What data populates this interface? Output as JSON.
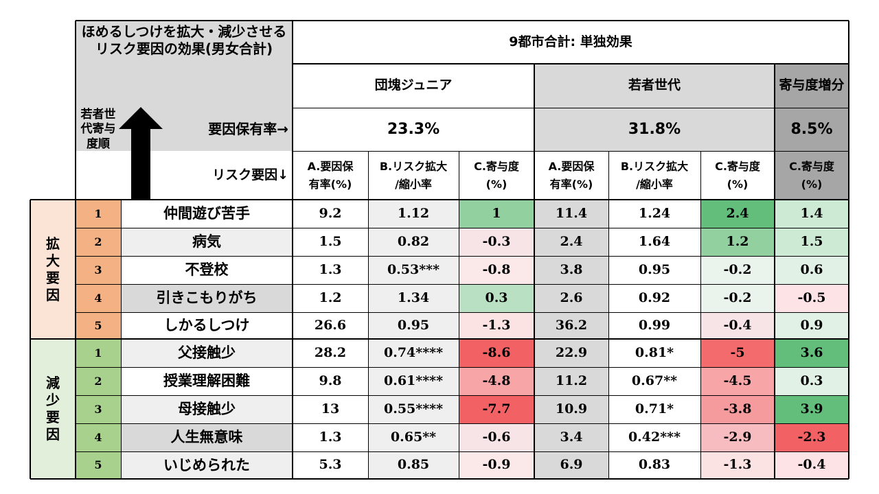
{
  "title": "ほめるしつけを拡大・減少させるリスク要因の効果(男女合計)",
  "city_header": "9都市合計: 単独効果",
  "groups": {
    "dankai": "団塊ジュニア",
    "wakamono": "若者世代",
    "delta": "寄与度増分"
  },
  "prevalence_label": "要因保有率→",
  "prevalence": {
    "dankai": "23.3%",
    "wakamono": "31.8%",
    "delta": "8.5%"
  },
  "rank_label": "若者世代寄与度順",
  "risk_label": "リスク要因↓",
  "col_headers": {
    "a": "A.要因保有率(%)",
    "b": "B.リスク拡大/縮小率",
    "c": "C.寄与度(%)"
  },
  "sections": {
    "expand": "拡大要因",
    "reduce": "減少要因"
  },
  "rows": [
    {
      "rank": "1",
      "name": "仲間遊び苦手",
      "d_a": "9.2",
      "d_b": "1.12",
      "d_c": "1",
      "w_a": "11.4",
      "w_b": "1.24",
      "w_c": "2.4",
      "delta": "1.4"
    },
    {
      "rank": "2",
      "name": "病気",
      "d_a": "1.5",
      "d_b": "0.82",
      "d_c": "-0.3",
      "w_a": "2.4",
      "w_b": "1.64",
      "w_c": "1.2",
      "delta": "1.5"
    },
    {
      "rank": "3",
      "name": "不登校",
      "d_a": "1.3",
      "d_b": "0.53***",
      "d_c": "-0.8",
      "w_a": "3.8",
      "w_b": "0.95",
      "w_c": "-0.2",
      "delta": "0.6"
    },
    {
      "rank": "4",
      "name": "引きこもりがち",
      "d_a": "1.2",
      "d_b": "1.34",
      "d_c": "0.3",
      "w_a": "2.6",
      "w_b": "0.92",
      "w_c": "-0.2",
      "delta": "-0.5"
    },
    {
      "rank": "5",
      "name": "しかるしつけ",
      "d_a": "26.6",
      "d_b": "0.95",
      "d_c": "-1.3",
      "w_a": "36.2",
      "w_b": "0.99",
      "w_c": "-0.4",
      "delta": "0.9"
    },
    {
      "rank": "1",
      "name": "父接触少",
      "d_a": "28.2",
      "d_b": "0.74****",
      "d_c": "-8.6",
      "w_a": "22.9",
      "w_b": "0.81*",
      "w_c": "-5",
      "delta": "3.6"
    },
    {
      "rank": "2",
      "name": "授業理解困難",
      "d_a": "9.8",
      "d_b": "0.61****",
      "d_c": "-4.8",
      "w_a": "11.2",
      "w_b": "0.67**",
      "w_c": "-4.5",
      "delta": "0.3"
    },
    {
      "rank": "3",
      "name": "母接触少",
      "d_a": "13",
      "d_b": "0.55****",
      "d_c": "-7.7",
      "w_a": "10.9",
      "w_b": "0.71*",
      "w_c": "-3.8",
      "delta": "3.9"
    },
    {
      "rank": "4",
      "name": "人生無意味",
      "d_a": "1.3",
      "d_b": "0.65**",
      "d_c": "-0.6",
      "w_a": "3.4",
      "w_b": "0.42***",
      "w_c": "-2.9",
      "delta": "-2.3"
    },
    {
      "rank": "5",
      "name": "いじめられた",
      "d_a": "5.3",
      "d_b": "0.85",
      "d_c": "-0.9",
      "w_a": "6.9",
      "w_b": "0.83",
      "w_c": "-1.3",
      "delta": "-0.4"
    }
  ],
  "colors": {
    "header_gray": "#d9d9d9",
    "delta_gray": "#a6a6a6",
    "light_gray": "#efefef",
    "expand_orange": "#fbe4d5",
    "expand_rank": "#f4b183",
    "reduce_green": "#e2efda",
    "reduce_rank": "#a9d18e"
  }
}
